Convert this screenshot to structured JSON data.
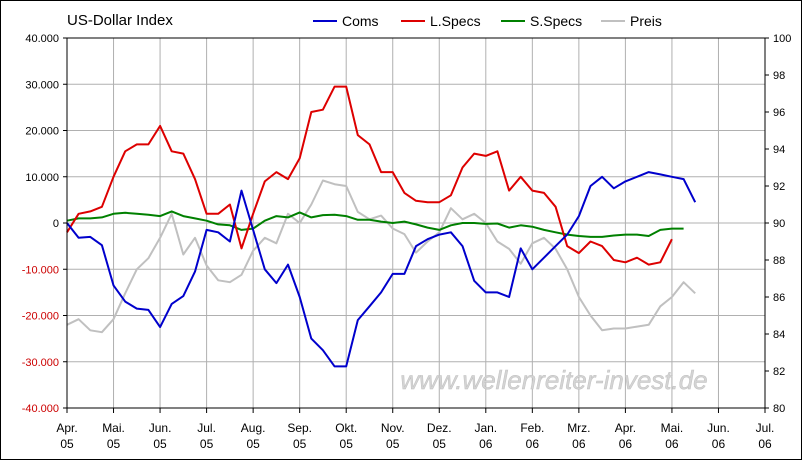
{
  "chart_data": {
    "type": "line",
    "title": "US-Dollar Index",
    "watermark": "www.wellenreiter-invest.de",
    "x_ticks": [
      {
        "label": "Apr.",
        "sub": "05"
      },
      {
        "label": "Mai.",
        "sub": "05"
      },
      {
        "label": "Jun.",
        "sub": "05"
      },
      {
        "label": "Jul.",
        "sub": "05"
      },
      {
        "label": "Aug.",
        "sub": "05"
      },
      {
        "label": "Sep.",
        "sub": "05"
      },
      {
        "label": "Okt.",
        "sub": "05"
      },
      {
        "label": "Nov.",
        "sub": "05"
      },
      {
        "label": "Dez.",
        "sub": "05"
      },
      {
        "label": "Jan.",
        "sub": "06"
      },
      {
        "label": "Feb.",
        "sub": "06"
      },
      {
        "label": "Mrz.",
        "sub": "06"
      },
      {
        "label": "Apr.",
        "sub": "06"
      },
      {
        "label": "Mai.",
        "sub": "06"
      },
      {
        "label": "Jun.",
        "sub": "06"
      },
      {
        "label": "Jul.",
        "sub": "06"
      }
    ],
    "y_left": {
      "min": -40000,
      "max": 40000,
      "step": 10000,
      "tick_labels": [
        "40.000",
        "30.000",
        "20.000",
        "10.000",
        "0",
        "-10.000",
        "-20.000",
        "-30.000",
        "-40.000"
      ]
    },
    "y_right": {
      "min": 80,
      "max": 100,
      "step": 2,
      "tick_labels": [
        "100",
        "98",
        "96",
        "94",
        "92",
        "90",
        "88",
        "86",
        "84",
        "82",
        "80"
      ]
    },
    "grid": true,
    "legend_position": "top",
    "x_month_index": [
      0,
      0.25,
      0.5,
      0.75,
      1,
      1.25,
      1.5,
      1.75,
      2,
      2.25,
      2.5,
      2.75,
      3,
      3.25,
      3.5,
      3.75,
      4,
      4.25,
      4.5,
      4.75,
      5,
      5.25,
      5.5,
      5.75,
      6,
      6.25,
      6.5,
      6.75,
      7,
      7.25,
      7.5,
      7.75,
      8,
      8.25,
      8.5,
      8.75,
      9,
      9.25,
      9.5,
      9.75,
      10,
      10.25,
      10.5,
      10.75,
      11,
      11.25,
      11.5,
      11.75,
      12,
      12.25,
      12.5,
      12.75,
      13,
      13.25,
      13.5,
      13.75,
      14,
      14.25,
      14.5,
      14.75,
      15
    ],
    "series": [
      {
        "name": "Coms",
        "color": "#0000cc",
        "axis": "left",
        "values": [
          0,
          -3200,
          -3000,
          -4800,
          -13500,
          -17000,
          -18500,
          -18800,
          -22500,
          -17500,
          -15800,
          -10500,
          -1500,
          -2000,
          -4000,
          7000,
          -1500,
          -10000,
          -13000,
          -9000,
          -16000,
          -25000,
          -27500,
          -31000,
          -31000,
          -21000,
          -18000,
          -15000,
          -11000,
          -11000,
          -5000,
          -3500,
          -2500,
          -2000,
          -5000,
          -12500,
          -15000,
          -15000,
          -16000,
          -5500,
          -10000,
          -7500,
          -5000,
          -2500,
          1500,
          8000,
          10000,
          7500,
          9000,
          10000,
          11000,
          10500,
          10000,
          9500,
          4500,
          null,
          null,
          null,
          null,
          null,
          null
        ]
      },
      {
        "name": "L.Specs",
        "color": "#dd0000",
        "axis": "left",
        "values": [
          -2000,
          2000,
          2500,
          3500,
          10000,
          15500,
          17000,
          17000,
          21000,
          15500,
          15000,
          9500,
          2000,
          2000,
          4000,
          -5500,
          2000,
          9000,
          11000,
          9500,
          14000,
          24000,
          24500,
          29500,
          29500,
          19000,
          17000,
          11000,
          11000,
          6500,
          4800,
          4500,
          4500,
          6000,
          12000,
          15000,
          14500,
          15500,
          7000,
          10000,
          7000,
          6500,
          3500,
          -5000,
          -6500,
          -4000,
          -5000,
          -8000,
          -8500,
          -7500,
          -9000,
          -8500,
          -3500,
          null,
          null,
          null,
          null,
          null,
          null,
          null,
          null
        ]
      },
      {
        "name": "S.Specs",
        "color": "#008000",
        "axis": "left",
        "values": [
          500,
          1000,
          1000,
          1200,
          2000,
          2200,
          2000,
          1800,
          1500,
          2500,
          1500,
          1000,
          500,
          -300,
          -500,
          -1500,
          -1200,
          500,
          1500,
          1200,
          2300,
          1200,
          1700,
          1800,
          1500,
          700,
          700,
          300,
          0,
          300,
          -300,
          -1000,
          -1500,
          -500,
          0,
          0,
          -200,
          -100,
          -1000,
          -500,
          -800,
          -1500,
          -2000,
          -2500,
          -2800,
          -3000,
          -3000,
          -2700,
          -2500,
          -2500,
          -2800,
          -1500,
          -1200,
          -1200,
          null,
          null,
          null,
          null,
          null,
          null,
          null
        ]
      },
      {
        "name": "Preis",
        "color": "#c0c0c0",
        "axis": "right",
        "values": [
          84.5,
          84.8,
          84.2,
          84.1,
          84.8,
          86.2,
          87.5,
          88.1,
          89.2,
          90.5,
          88.3,
          89.2,
          87.7,
          86.9,
          86.8,
          87.2,
          88.5,
          89.2,
          88.9,
          90.5,
          90.0,
          91.0,
          92.3,
          92.1,
          92.0,
          90.6,
          90.2,
          90.4,
          89.7,
          89.4,
          88.4,
          89.0,
          89.5,
          90.8,
          90.2,
          90.5,
          90.0,
          89.0,
          88.6,
          87.8,
          88.9,
          89.2,
          88.6,
          87.5,
          86.0,
          85.0,
          84.2,
          84.3,
          84.3,
          84.4,
          84.5,
          85.5,
          86.0,
          86.8,
          86.2,
          null,
          null,
          null,
          null,
          null,
          null
        ]
      }
    ]
  }
}
